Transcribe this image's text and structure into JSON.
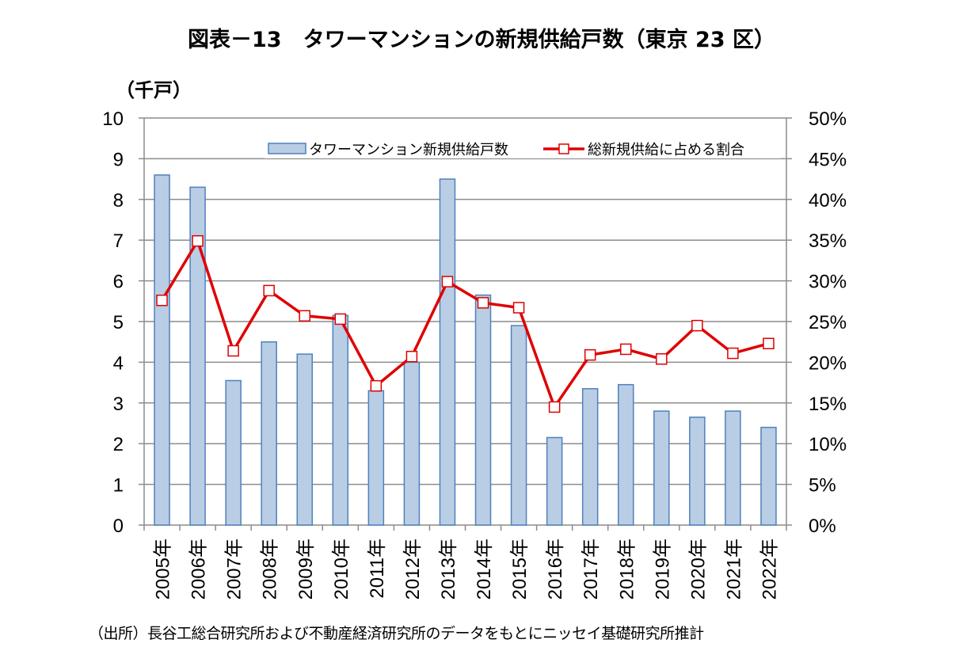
{
  "title": "図表－13　タワーマンションの新規供給戸数（東京 23 区）",
  "unit_label": "（千戸）",
  "source": "（出所）長谷工総合研究所および不動産経済研究所のデータをもとにニッセイ基礎研究所推計",
  "colors": {
    "bar_fill": "#b9cde5",
    "bar_stroke": "#4f81bd",
    "line": "#e00000",
    "marker_fill": "#ffffff",
    "grid": "#8c8c8c"
  },
  "chart_data": {
    "type": "bar+line",
    "title": "図表－13　タワーマンションの新規供給戸数（東京 23 区）",
    "categories": [
      "2005年",
      "2006年",
      "2007年",
      "2008年",
      "2009年",
      "2010年",
      "2011年",
      "2012年",
      "2013年",
      "2014年",
      "2015年",
      "2016年",
      "2017年",
      "2018年",
      "2019年",
      "2020年",
      "2021年",
      "2022年"
    ],
    "series": [
      {
        "name": "タワーマンション新規供給戸数",
        "type": "bar",
        "axis": "left",
        "values": [
          8.6,
          8.3,
          3.55,
          4.5,
          4.2,
          5.15,
          3.3,
          4.0,
          8.5,
          5.65,
          4.9,
          2.15,
          3.35,
          3.45,
          2.8,
          2.65,
          2.8,
          2.4
        ]
      },
      {
        "name": "総新規供給に占める割合",
        "type": "line",
        "axis": "right",
        "values": [
          27.6,
          34.9,
          21.4,
          28.8,
          25.7,
          25.3,
          17.1,
          20.7,
          29.9,
          27.3,
          26.7,
          14.5,
          20.9,
          21.6,
          20.4,
          24.5,
          21.1,
          22.3
        ]
      }
    ],
    "ylabel": "（千戸）",
    "ylim": [
      0,
      10
    ],
    "yticks": [
      "0",
      "1",
      "2",
      "3",
      "4",
      "5",
      "6",
      "7",
      "8",
      "9",
      "10"
    ],
    "y2lim": [
      0,
      50
    ],
    "y2ticks": [
      "0%",
      "5%",
      "10%",
      "15%",
      "20%",
      "25%",
      "30%",
      "35%",
      "40%",
      "45%",
      "50%"
    ],
    "grid": true,
    "legend": "top-right"
  }
}
